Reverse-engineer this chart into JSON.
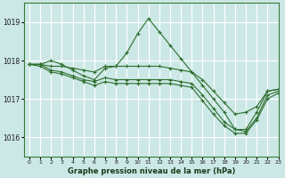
{
  "title": "Graphe pression niveau de la mer (hPa)",
  "bg_color": "#cce8e6",
  "grid_color": "#ffffff",
  "line_color": "#2d6e2d",
  "xlim": [
    -0.5,
    23
  ],
  "ylim": [
    1015.5,
    1019.5
  ],
  "yticks": [
    1016,
    1017,
    1018,
    1019
  ],
  "xticks": [
    0,
    1,
    2,
    3,
    4,
    5,
    6,
    7,
    8,
    9,
    10,
    11,
    12,
    13,
    14,
    15,
    16,
    17,
    18,
    19,
    20,
    21,
    22,
    23
  ],
  "series": [
    [
      1017.9,
      1017.9,
      1018.0,
      1017.9,
      1017.75,
      1017.6,
      1017.5,
      1017.8,
      1017.85,
      1018.2,
      1018.7,
      1019.1,
      1018.75,
      1018.4,
      1018.05,
      1017.7,
      1017.35,
      1017.0,
      1016.65,
      1016.2,
      1016.2,
      1016.65,
      1017.2,
      1017.25
    ],
    [
      1017.9,
      1017.9,
      1017.85,
      1017.85,
      1017.8,
      1017.75,
      1017.7,
      1017.85,
      1017.85,
      1017.85,
      1017.85,
      1017.85,
      1017.85,
      1017.8,
      1017.75,
      1017.7,
      1017.5,
      1017.2,
      1016.9,
      1016.6,
      1016.65,
      1016.8,
      1017.2,
      1017.25
    ],
    [
      1017.9,
      1017.9,
      1017.75,
      1017.7,
      1017.6,
      1017.5,
      1017.45,
      1017.55,
      1017.5,
      1017.5,
      1017.5,
      1017.5,
      1017.5,
      1017.5,
      1017.45,
      1017.4,
      1017.1,
      1016.75,
      1016.4,
      1016.2,
      1016.15,
      1016.5,
      1017.1,
      1017.2
    ],
    [
      1017.9,
      1017.85,
      1017.7,
      1017.65,
      1017.55,
      1017.45,
      1017.35,
      1017.45,
      1017.4,
      1017.4,
      1017.4,
      1017.4,
      1017.4,
      1017.4,
      1017.35,
      1017.3,
      1016.95,
      1016.6,
      1016.3,
      1016.1,
      1016.1,
      1016.45,
      1017.0,
      1017.15
    ]
  ]
}
